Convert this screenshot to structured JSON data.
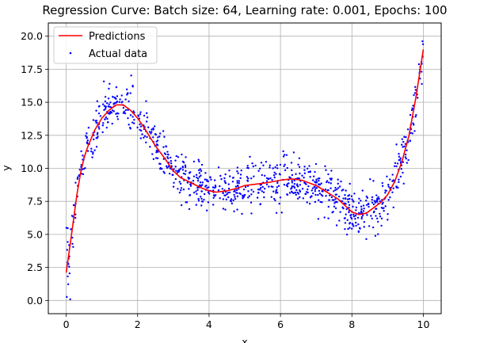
{
  "chart_data": {
    "type": "scatter",
    "title": "Regression Curve: Batch size: 64, Learning rate: 0.001, Epochs: 100",
    "xlabel": "x",
    "ylabel": "y",
    "xlim": [
      -0.5,
      10.5
    ],
    "ylim": [
      -1.0,
      21.0
    ],
    "xticks": [
      "0",
      "2",
      "4",
      "6",
      "8",
      "10"
    ],
    "yticks": [
      "0.0",
      "2.5",
      "5.0",
      "7.5",
      "10.0",
      "12.5",
      "15.0",
      "17.5",
      "20.0"
    ],
    "grid": true,
    "legend_position": "top-left",
    "series": [
      {
        "name": "Predictions",
        "kind": "line",
        "color": "#ff0000",
        "x": [
          0.0,
          0.1,
          0.2,
          0.3,
          0.4,
          0.5,
          0.6,
          0.8,
          1.0,
          1.2,
          1.4,
          1.6,
          1.8,
          2.0,
          2.2,
          2.5,
          2.8,
          3.0,
          3.2,
          3.5,
          3.8,
          4.0,
          4.2,
          4.5,
          4.8,
          5.0,
          5.3,
          5.6,
          6.0,
          6.3,
          6.6,
          7.0,
          7.3,
          7.6,
          7.8,
          8.0,
          8.2,
          8.4,
          8.6,
          8.8,
          9.0,
          9.2,
          9.4,
          9.6,
          9.8,
          10.0
        ],
        "y": [
          2.1,
          4.0,
          6.0,
          8.0,
          9.6,
          10.8,
          11.6,
          12.9,
          13.8,
          14.4,
          14.8,
          14.8,
          14.4,
          13.8,
          13.0,
          11.7,
          10.6,
          9.8,
          9.3,
          8.9,
          8.5,
          8.3,
          8.2,
          8.3,
          8.5,
          8.7,
          8.8,
          8.9,
          9.1,
          9.2,
          9.1,
          8.7,
          8.2,
          7.7,
          7.2,
          6.7,
          6.5,
          6.6,
          7.0,
          7.4,
          8.0,
          9.0,
          10.5,
          12.5,
          15.5,
          19.0
        ]
      },
      {
        "name": "Actual data",
        "kind": "scatter",
        "color": "#0000ff",
        "count": 1000
      }
    ]
  }
}
